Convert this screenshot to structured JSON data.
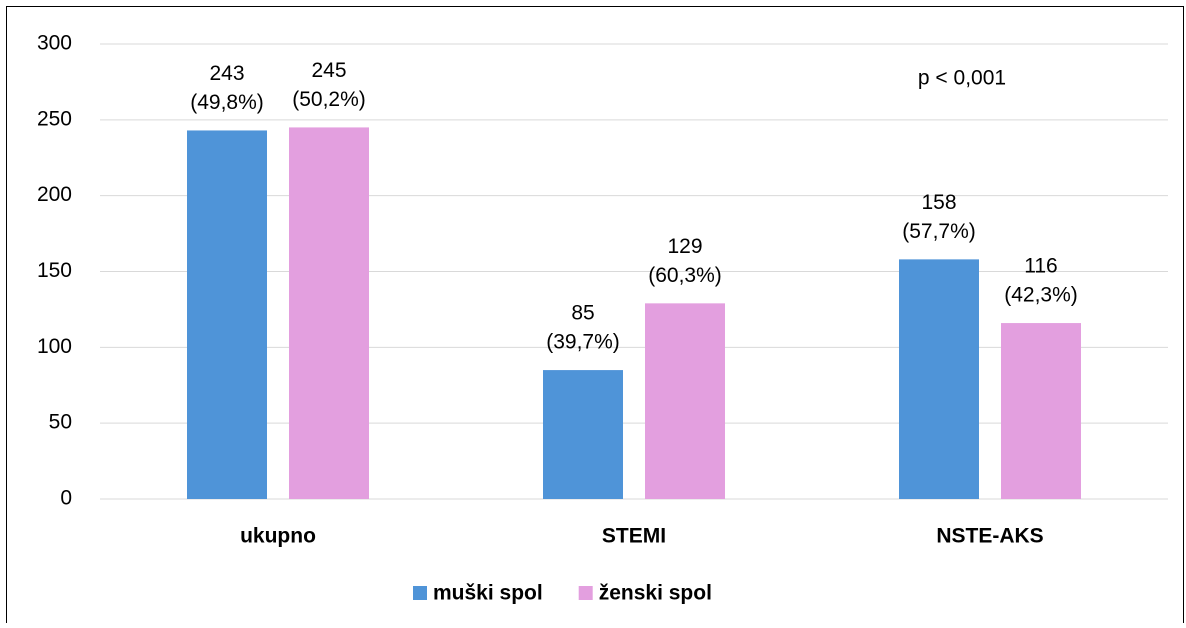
{
  "chart_data": {
    "type": "bar",
    "categories": [
      "ukupno",
      "STEMI",
      "NSTE-AKS"
    ],
    "series": [
      {
        "name": "muški spol",
        "color": "#4f94d8",
        "values": [
          243,
          85,
          158
        ],
        "value_labels": [
          [
            "243",
            "(49,8%)"
          ],
          [
            "85",
            "(39,7%)"
          ],
          [
            "158",
            "(57,7%)"
          ]
        ]
      },
      {
        "name": "ženski spol",
        "color": "#e39fdf",
        "values": [
          245,
          129,
          116
        ],
        "value_labels": [
          [
            "245",
            "(50,2%)"
          ],
          [
            "129",
            "(60,3%)"
          ],
          [
            "116",
            "(42,3%)"
          ]
        ]
      }
    ],
    "annotation": "p < 0,001",
    "ylim": [
      0,
      300
    ],
    "yticks": [
      0,
      50,
      100,
      150,
      200,
      250,
      300
    ],
    "grid": true,
    "legend": "bottom"
  }
}
